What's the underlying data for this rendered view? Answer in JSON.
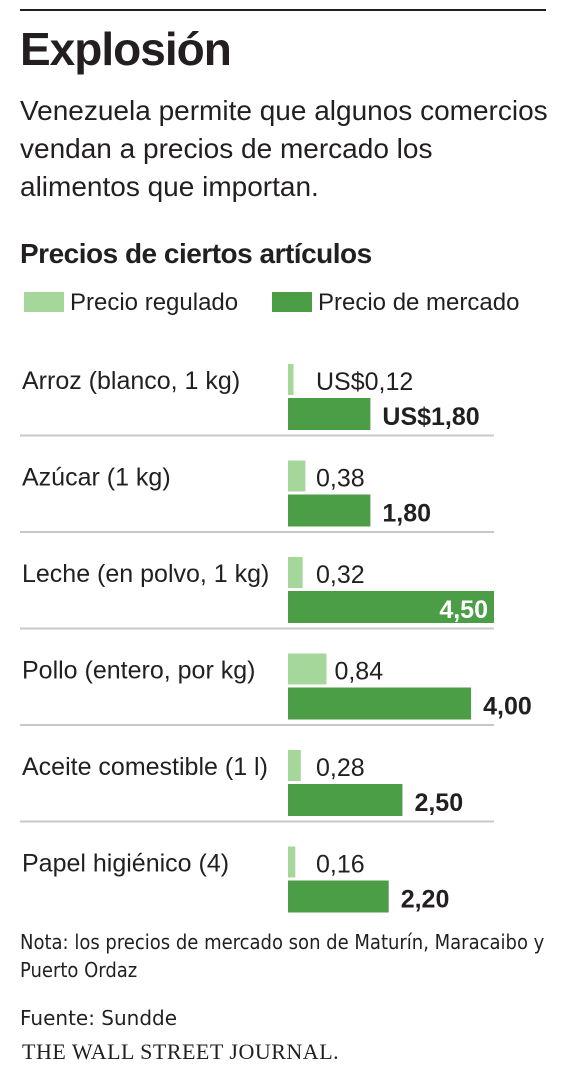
{
  "title": "Explosión",
  "subtitle": "Venezuela permite que algunos comercios vendan a precios de mercado los alimentos que importan.",
  "colors": {
    "regulated": "#a5d79a",
    "market": "#4c9e46",
    "text": "#231f20",
    "rule": "#c8c8c8"
  },
  "chart_data": {
    "type": "bar",
    "orientation": "horizontal",
    "title": "Precios de ciertos artículos",
    "legend": {
      "placement": "top",
      "entries": [
        "Precio regulado",
        "Precio de mercado"
      ]
    },
    "categories": [
      "Arroz (blanco, 1 kg)",
      "Azúcar (1 kg)",
      "Leche (en polvo, 1 kg)",
      "Pollo (entero, por kg)",
      "Aceite comestible (1 l)",
      "Papel higiénico (4)"
    ],
    "series": [
      {
        "name": "Precio regulado",
        "values": [
          0.12,
          0.38,
          0.32,
          0.84,
          0.28,
          0.16
        ],
        "labels": [
          "US$0,12",
          "0,38",
          "0,32",
          "0,84",
          "0,28",
          "0,16"
        ]
      },
      {
        "name": "Precio de mercado",
        "values": [
          1.8,
          1.8,
          4.5,
          4.0,
          2.5,
          2.2
        ],
        "labels": [
          "US$1,80",
          "1,80",
          "4,50",
          "4,00",
          "2,50",
          "2,20"
        ]
      }
    ],
    "xlim": [
      0,
      4.5
    ],
    "grid": false
  },
  "footer": {
    "note": "Nota: los precios de mercado son de Maturín, Maracaibo y Puerto Ordaz",
    "source": "Fuente: Sundde",
    "publisher": "THE WALL STREET JOURNAL."
  }
}
